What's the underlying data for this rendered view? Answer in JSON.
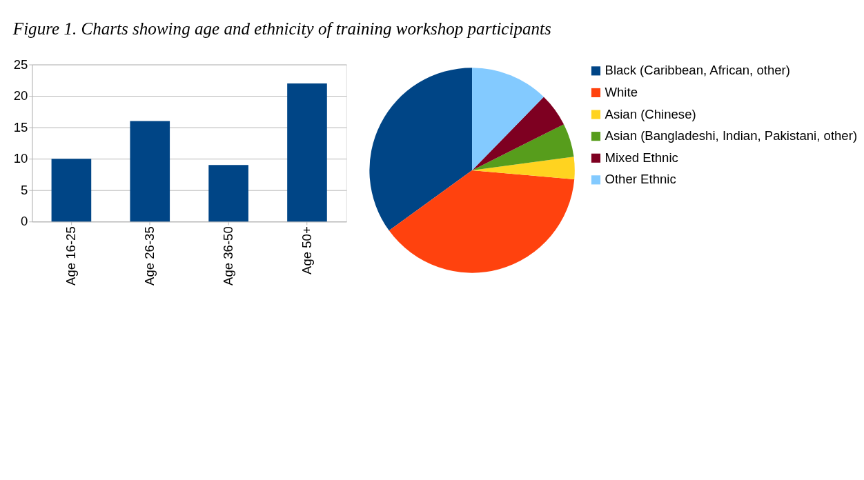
{
  "chart_data": [
    {
      "type": "bar",
      "title": "Figure 1. Charts showing age and ethnicity of training workshop participants",
      "categories": [
        "Age 16-25",
        "Age 26-35",
        "Age 36-50",
        "Age 50+"
      ],
      "values": [
        10,
        16,
        9,
        22
      ],
      "color": "#004586",
      "ylim": [
        0,
        25
      ],
      "yticks": [
        0,
        5,
        10,
        15,
        20,
        25
      ],
      "grid": "y"
    },
    {
      "type": "pie",
      "categories": [
        "Black (Caribbean, African, other)",
        "White",
        "Asian (Chinese)",
        "Asian (Bangladeshi, Indian, Pakistani, other)",
        "Mixed Ethnic",
        "Other Ethnic"
      ],
      "values": [
        35.0,
        38.6,
        3.5,
        5.3,
        5.3,
        12.3
      ],
      "colors": [
        "#004586",
        "#ff420e",
        "#ffd320",
        "#579d1c",
        "#7e0021",
        "#83caff"
      ],
      "legend": "right"
    }
  ]
}
